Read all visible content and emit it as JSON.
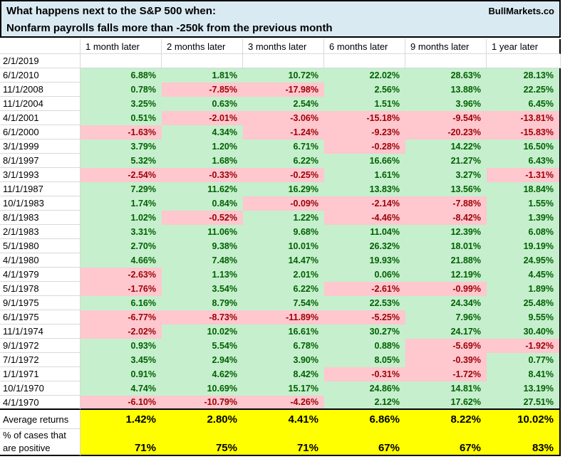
{
  "header": {
    "title_line1": "What happens next to the S&P 500 when:",
    "title_line2": "Nonfarm payrolls falls more than -250k from the previous month",
    "brand": "BullMarkets.co"
  },
  "table": {
    "columns": [
      "1 month later",
      "2 months later",
      "3 months later",
      "6 months later",
      "9 months later",
      "1 year later"
    ],
    "rows": [
      {
        "date": "2/1/2019",
        "values": [
          null,
          null,
          null,
          null,
          null,
          null
        ]
      },
      {
        "date": "6/1/2010",
        "values": [
          "6.88%",
          "1.81%",
          "10.72%",
          "22.02%",
          "28.63%",
          "28.13%"
        ]
      },
      {
        "date": "11/1/2008",
        "values": [
          "0.78%",
          "-7.85%",
          "-17.98%",
          "2.56%",
          "13.88%",
          "22.25%"
        ]
      },
      {
        "date": "11/1/2004",
        "values": [
          "3.25%",
          "0.63%",
          "2.54%",
          "1.51%",
          "3.96%",
          "6.45%"
        ]
      },
      {
        "date": "4/1/2001",
        "values": [
          "0.51%",
          "-2.01%",
          "-3.06%",
          "-15.18%",
          "-9.54%",
          "-13.81%"
        ]
      },
      {
        "date": "6/1/2000",
        "values": [
          "-1.63%",
          "4.34%",
          "-1.24%",
          "-9.23%",
          "-20.23%",
          "-15.83%"
        ]
      },
      {
        "date": "3/1/1999",
        "values": [
          "3.79%",
          "1.20%",
          "6.71%",
          "-0.28%",
          "14.22%",
          "16.50%"
        ]
      },
      {
        "date": "8/1/1997",
        "values": [
          "5.32%",
          "1.68%",
          "6.22%",
          "16.66%",
          "21.27%",
          "6.43%"
        ]
      },
      {
        "date": "3/1/1993",
        "values": [
          "-2.54%",
          "-0.33%",
          "-0.25%",
          "1.61%",
          "3.27%",
          "-1.31%"
        ]
      },
      {
        "date": "11/1/1987",
        "values": [
          "7.29%",
          "11.62%",
          "16.29%",
          "13.83%",
          "13.56%",
          "18.84%"
        ]
      },
      {
        "date": "10/1/1983",
        "values": [
          "1.74%",
          "0.84%",
          "-0.09%",
          "-2.14%",
          "-7.88%",
          "1.55%"
        ]
      },
      {
        "date": "8/1/1983",
        "values": [
          "1.02%",
          "-0.52%",
          "1.22%",
          "-4.46%",
          "-8.42%",
          "1.39%"
        ]
      },
      {
        "date": "2/1/1983",
        "values": [
          "3.31%",
          "11.06%",
          "9.68%",
          "11.04%",
          "12.39%",
          "6.08%"
        ]
      },
      {
        "date": "5/1/1980",
        "values": [
          "2.70%",
          "9.38%",
          "10.01%",
          "26.32%",
          "18.01%",
          "19.19%"
        ]
      },
      {
        "date": "4/1/1980",
        "values": [
          "4.66%",
          "7.48%",
          "14.47%",
          "19.93%",
          "21.88%",
          "24.95%"
        ]
      },
      {
        "date": "4/1/1979",
        "values": [
          "-2.63%",
          "1.13%",
          "2.01%",
          "0.06%",
          "12.19%",
          "4.45%"
        ]
      },
      {
        "date": "5/1/1978",
        "values": [
          "-1.76%",
          "3.54%",
          "6.22%",
          "-2.61%",
          "-0.99%",
          "1.89%"
        ]
      },
      {
        "date": "9/1/1975",
        "values": [
          "6.16%",
          "8.79%",
          "7.54%",
          "22.53%",
          "24.34%",
          "25.48%"
        ]
      },
      {
        "date": "6/1/1975",
        "values": [
          "-6.77%",
          "-8.73%",
          "-11.89%",
          "-5.25%",
          "7.96%",
          "9.55%"
        ]
      },
      {
        "date": "11/1/1974",
        "values": [
          "-2.02%",
          "10.02%",
          "16.61%",
          "30.27%",
          "24.17%",
          "30.40%"
        ]
      },
      {
        "date": "9/1/1972",
        "values": [
          "0.93%",
          "5.54%",
          "6.78%",
          "0.88%",
          "-5.69%",
          "-1.92%"
        ]
      },
      {
        "date": "7/1/1972",
        "values": [
          "3.45%",
          "2.94%",
          "3.90%",
          "8.05%",
          "-0.39%",
          "0.77%"
        ]
      },
      {
        "date": "1/1/1971",
        "values": [
          "0.91%",
          "4.62%",
          "8.42%",
          "-0.31%",
          "-1.72%",
          "8.41%"
        ]
      },
      {
        "date": "10/1/1970",
        "values": [
          "4.74%",
          "10.69%",
          "15.17%",
          "24.86%",
          "14.81%",
          "13.19%"
        ]
      },
      {
        "date": "4/1/1970",
        "values": [
          "-6.10%",
          "-10.79%",
          "-4.26%",
          "2.12%",
          "17.62%",
          "27.51%"
        ]
      }
    ],
    "summary": {
      "average_label": "Average returns",
      "average_values": [
        "1.42%",
        "2.80%",
        "4.41%",
        "6.86%",
        "8.22%",
        "10.02%"
      ],
      "positive_label_line1": "% of cases that",
      "positive_label_line2": "are positive",
      "positive_values": [
        "71%",
        "75%",
        "71%",
        "67%",
        "67%",
        "83%"
      ]
    }
  },
  "colors": {
    "title_bg": "#daeaf3",
    "positive_bg": "#c6efce",
    "positive_text": "#006100",
    "negative_bg": "#ffc7ce",
    "negative_text": "#9c0006",
    "summary_bg": "#ffff00",
    "gridline": "#d9d9d9",
    "border": "#000000"
  },
  "chart_data": {
    "type": "table",
    "title": "What happens next to the S&P 500 when: Nonfarm payrolls falls more than -250k from the previous month",
    "source": "BullMarkets.co",
    "columns": [
      "1 month later",
      "2 months later",
      "3 months later",
      "6 months later",
      "9 months later",
      "1 year later"
    ],
    "unit": "percent",
    "series": [
      {
        "name": "2/1/2019",
        "values": [
          null,
          null,
          null,
          null,
          null,
          null
        ]
      },
      {
        "name": "6/1/2010",
        "values": [
          6.88,
          1.81,
          10.72,
          22.02,
          28.63,
          28.13
        ]
      },
      {
        "name": "11/1/2008",
        "values": [
          0.78,
          -7.85,
          -17.98,
          2.56,
          13.88,
          22.25
        ]
      },
      {
        "name": "11/1/2004",
        "values": [
          3.25,
          0.63,
          2.54,
          1.51,
          3.96,
          6.45
        ]
      },
      {
        "name": "4/1/2001",
        "values": [
          0.51,
          -2.01,
          -3.06,
          -15.18,
          -9.54,
          -13.81
        ]
      },
      {
        "name": "6/1/2000",
        "values": [
          -1.63,
          4.34,
          -1.24,
          -9.23,
          -20.23,
          -15.83
        ]
      },
      {
        "name": "3/1/1999",
        "values": [
          3.79,
          1.2,
          6.71,
          -0.28,
          14.22,
          16.5
        ]
      },
      {
        "name": "8/1/1997",
        "values": [
          5.32,
          1.68,
          6.22,
          16.66,
          21.27,
          6.43
        ]
      },
      {
        "name": "3/1/1993",
        "values": [
          -2.54,
          -0.33,
          -0.25,
          1.61,
          3.27,
          -1.31
        ]
      },
      {
        "name": "11/1/1987",
        "values": [
          7.29,
          11.62,
          16.29,
          13.83,
          13.56,
          18.84
        ]
      },
      {
        "name": "10/1/1983",
        "values": [
          1.74,
          0.84,
          -0.09,
          -2.14,
          -7.88,
          1.55
        ]
      },
      {
        "name": "8/1/1983",
        "values": [
          1.02,
          -0.52,
          1.22,
          -4.46,
          -8.42,
          1.39
        ]
      },
      {
        "name": "2/1/1983",
        "values": [
          3.31,
          11.06,
          9.68,
          11.04,
          12.39,
          6.08
        ]
      },
      {
        "name": "5/1/1980",
        "values": [
          2.7,
          9.38,
          10.01,
          26.32,
          18.01,
          19.19
        ]
      },
      {
        "name": "4/1/1980",
        "values": [
          4.66,
          7.48,
          14.47,
          19.93,
          21.88,
          24.95
        ]
      },
      {
        "name": "4/1/1979",
        "values": [
          -2.63,
          1.13,
          2.01,
          0.06,
          12.19,
          4.45
        ]
      },
      {
        "name": "5/1/1978",
        "values": [
          -1.76,
          3.54,
          6.22,
          -2.61,
          -0.99,
          1.89
        ]
      },
      {
        "name": "9/1/1975",
        "values": [
          6.16,
          8.79,
          7.54,
          22.53,
          24.34,
          25.48
        ]
      },
      {
        "name": "6/1/1975",
        "values": [
          -6.77,
          -8.73,
          -11.89,
          -5.25,
          7.96,
          9.55
        ]
      },
      {
        "name": "11/1/1974",
        "values": [
          -2.02,
          10.02,
          16.61,
          30.27,
          24.17,
          30.4
        ]
      },
      {
        "name": "9/1/1972",
        "values": [
          0.93,
          5.54,
          6.78,
          0.88,
          -5.69,
          -1.92
        ]
      },
      {
        "name": "7/1/1972",
        "values": [
          3.45,
          2.94,
          3.9,
          8.05,
          -0.39,
          0.77
        ]
      },
      {
        "name": "1/1/1971",
        "values": [
          0.91,
          4.62,
          8.42,
          -0.31,
          -1.72,
          8.41
        ]
      },
      {
        "name": "10/1/1970",
        "values": [
          4.74,
          10.69,
          15.17,
          24.86,
          14.81,
          13.19
        ]
      },
      {
        "name": "4/1/1970",
        "values": [
          -6.1,
          -10.79,
          -4.26,
          2.12,
          17.62,
          27.51
        ]
      }
    ],
    "average_returns": [
      1.42,
      2.8,
      4.41,
      6.86,
      8.22,
      10.02
    ],
    "percent_of_cases_positive": [
      71,
      75,
      71,
      67,
      67,
      83
    ]
  }
}
